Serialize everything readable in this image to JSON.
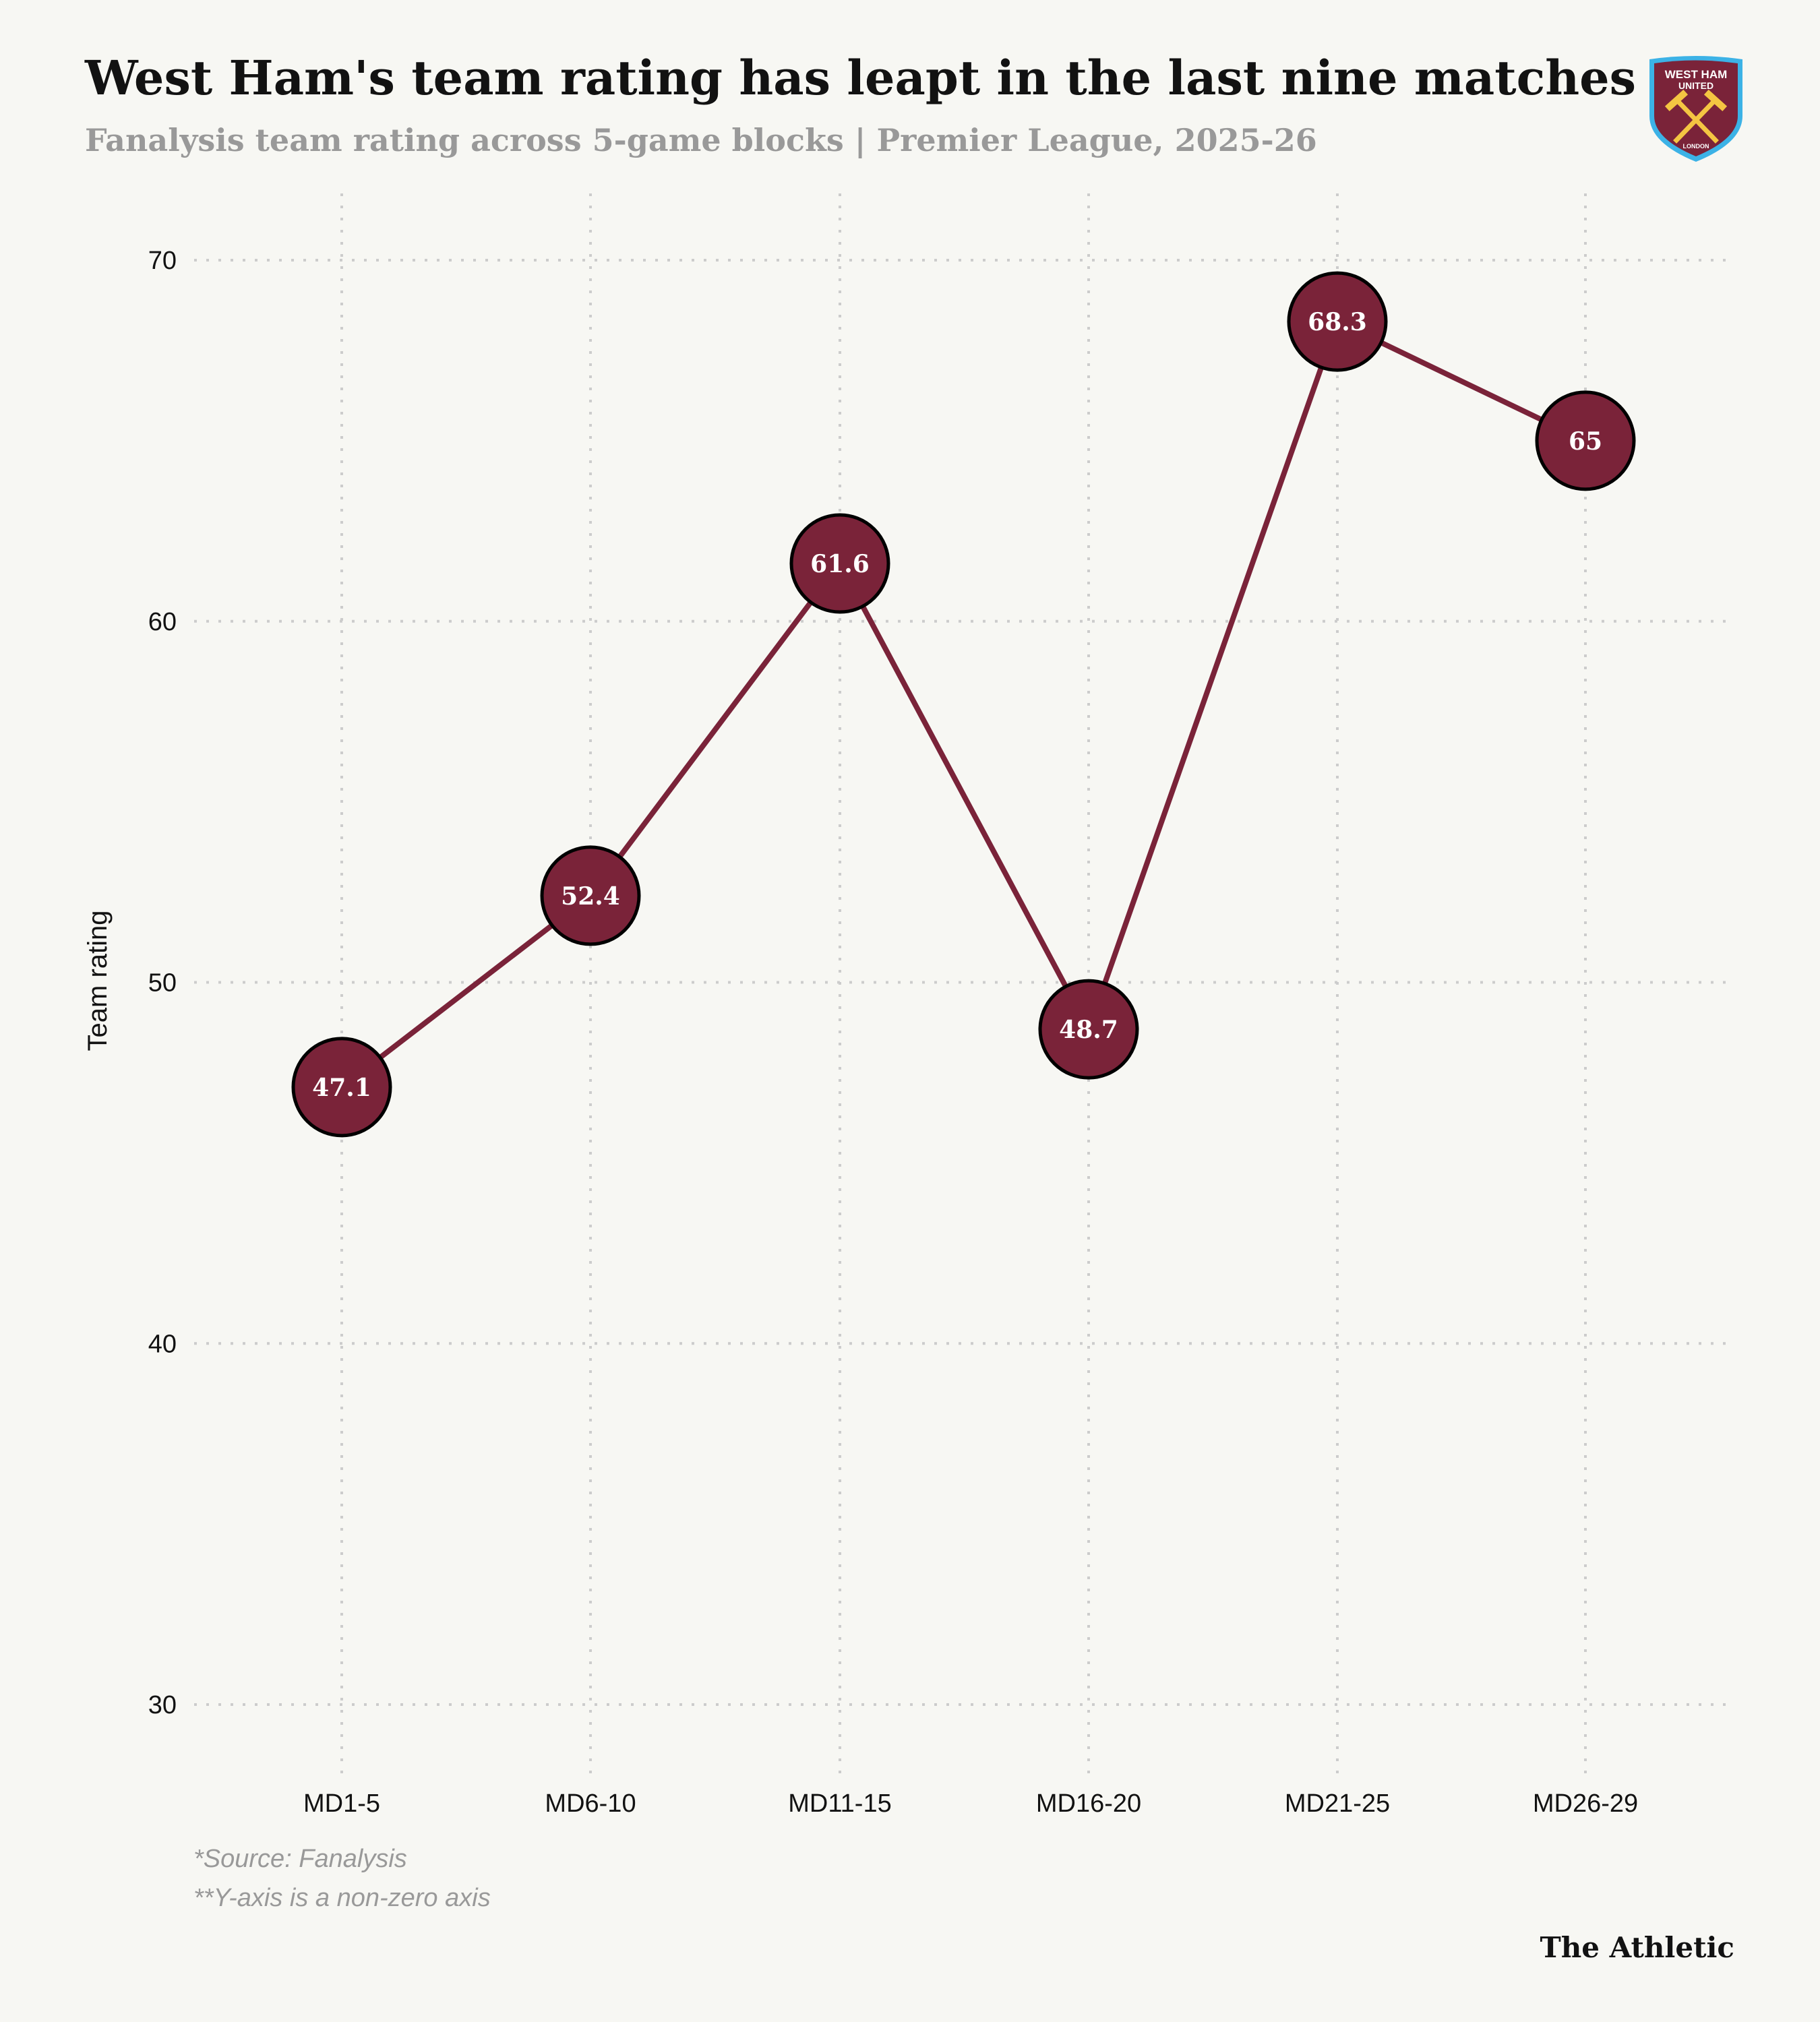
{
  "header": {
    "title": "West Ham's team rating has leapt in the last nine matches",
    "subtitle": "Fanalysis team rating across 5-game blocks | Premier League, 2025-26"
  },
  "logo": {
    "line1": "WEST HAM",
    "line2": "UNITED",
    "line3": "LONDON"
  },
  "footer": {
    "source": "*Source: Fanalysis",
    "note": "**Y-axis is a non-zero axis",
    "brand": "The Athletic"
  },
  "colors": {
    "line": "#7a2339",
    "marker": "#7a2339",
    "background": "#f7f7f3",
    "grid": "#cccccc"
  },
  "chart_data": {
    "type": "line",
    "title": "West Ham's team rating has leapt in the last nine matches",
    "subtitle": "Fanalysis team rating across 5-game blocks | Premier League, 2025-26",
    "xlabel": "",
    "ylabel": "Team rating",
    "categories": [
      "MD1-5",
      "MD6-10",
      "MD11-15",
      "MD16-20",
      "MD21-25",
      "MD26-29"
    ],
    "values": [
      47.1,
      52.4,
      61.6,
      48.7,
      68.3,
      65
    ],
    "data_labels": [
      "47.1",
      "52.4",
      "61.6",
      "48.7",
      "68.3",
      "65"
    ],
    "ylim": [
      30,
      70
    ],
    "yticks": [
      30,
      40,
      50,
      60,
      70
    ],
    "grid": true,
    "legend": "none"
  }
}
